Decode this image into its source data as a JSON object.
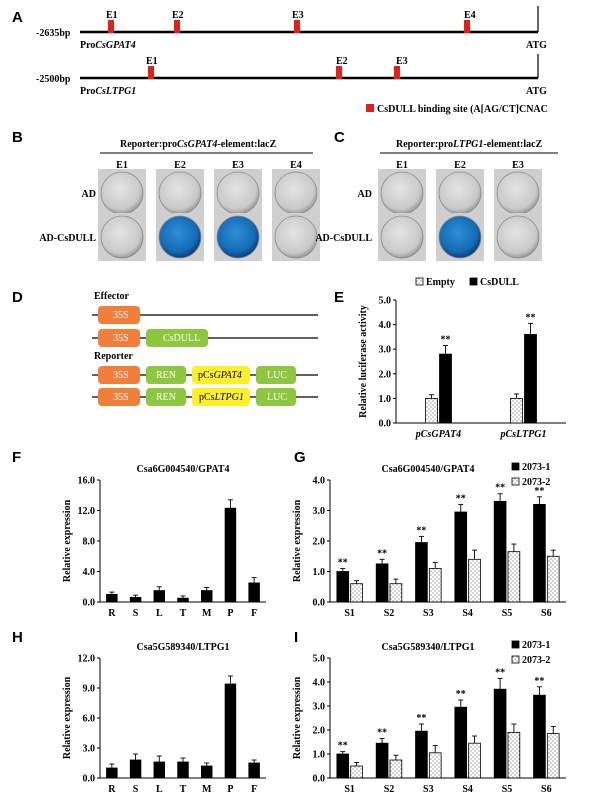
{
  "panel_letters": {
    "A": "A",
    "B": "B",
    "C": "C",
    "D": "D",
    "E": "E",
    "F": "F",
    "G": "G",
    "H": "H",
    "I": "I"
  },
  "panel_a": {
    "gpat4": {
      "start": "-2635bp",
      "name_prefix": "Pro",
      "name_italic": "CsGPAT4",
      "end": "ATG",
      "sites": [
        "E1",
        "E2",
        "E3",
        "E4"
      ]
    },
    "ltpg1": {
      "start": "-2500bp",
      "name_prefix": "Pro",
      "name_italic": "CsLTPG1",
      "end": "ATG",
      "sites": [
        "E1",
        "E2",
        "E3"
      ]
    },
    "legend": "CsDULL binding site (A[AG/CT]CNAC",
    "site_color": "#e0201a"
  },
  "panel_b": {
    "title_prefix": "Reporter:pro",
    "title_italic": "CsGPAT4",
    "title_suffix": "-element:lacZ",
    "cols": [
      "E1",
      "E2",
      "E3",
      "E4"
    ],
    "rows": [
      "AD",
      "AD-CsDULL"
    ],
    "blue": [
      [
        false,
        false,
        false,
        false
      ],
      [
        false,
        true,
        true,
        false
      ]
    ]
  },
  "panel_c": {
    "title_prefix": "Reporter:pro",
    "title_italic": "LTPG1",
    "title_suffix": "-element:lacZ",
    "cols": [
      "E1",
      "E2",
      "E3"
    ],
    "rows": [
      "AD",
      "AD-CsDULL"
    ],
    "blue": [
      [
        false,
        false,
        false
      ],
      [
        false,
        true,
        false
      ]
    ]
  },
  "panel_d": {
    "effector_label": "Effector",
    "reporter_label": "Reporter",
    "box_35s": "35S",
    "box_csdull": "CsDULL",
    "box_ren": "REN",
    "box_luc": "LUC",
    "gpat4_prefix": "pCs",
    "gpat4_italic": "GPAT4",
    "ltpg1_prefix": "pCs",
    "ltpg1_italic": "LTPG1",
    "colors": {
      "s35": "#f07f3c",
      "csdull": "#8dc63f",
      "ren": "#8dc63f",
      "promoter": "#ffef2a",
      "luc": "#8dc63f"
    }
  },
  "chart_data": [
    {
      "id": "E",
      "type": "bar",
      "ylabel": "Relative luciferase activity",
      "ylim": [
        0,
        5
      ],
      "yticks": [
        "0.0",
        "1.0",
        "2.0",
        "3.0",
        "4.0",
        "5.0"
      ],
      "categories": [
        "pCsGPAT4",
        "pCsLTPG1"
      ],
      "series": [
        {
          "name": "Empty",
          "values": [
            1.0,
            1.0
          ]
        },
        {
          "name": "CsDULL",
          "values": [
            2.8,
            3.6
          ]
        }
      ],
      "errors": [
        [
          0.15,
          0.18
        ],
        [
          0.35,
          0.45
        ]
      ],
      "significance": [
        [
          "",
          ""
        ],
        [
          "**",
          "**"
        ]
      ],
      "legend": "top"
    },
    {
      "id": "F",
      "type": "bar",
      "title": "Csa6G004540/GPAT4",
      "ylabel": "Relative expression",
      "ylim": [
        0,
        16
      ],
      "yticks": [
        "0.0",
        "4.0",
        "8.0",
        "12.0",
        "16.0"
      ],
      "categories": [
        "R",
        "S",
        "L",
        "T",
        "M",
        "P",
        "F"
      ],
      "series": [
        {
          "name": "",
          "values": [
            1.0,
            0.6,
            1.5,
            0.5,
            1.5,
            12.3,
            2.5
          ]
        }
      ],
      "errors": [
        [
          0.3,
          0.3,
          0.5,
          0.3,
          0.4,
          1.1,
          0.7
        ]
      ]
    },
    {
      "id": "G",
      "type": "bar",
      "title": "Csa6G004540/GPAT4",
      "ylabel": "Relative expression",
      "ylim": [
        0,
        4
      ],
      "yticks": [
        "0.0",
        "1.0",
        "2.0",
        "3.0",
        "4.0"
      ],
      "categories": [
        "S1",
        "S2",
        "S3",
        "S4",
        "S5",
        "S6"
      ],
      "series": [
        {
          "name": "2073-1",
          "values": [
            1.0,
            1.25,
            1.95,
            2.95,
            3.3,
            3.2
          ]
        },
        {
          "name": "2073-2",
          "values": [
            0.6,
            0.6,
            1.1,
            1.4,
            1.65,
            1.5
          ]
        }
      ],
      "errors": [
        [
          0.1,
          0.15,
          0.2,
          0.25,
          0.25,
          0.25
        ],
        [
          0.1,
          0.15,
          0.2,
          0.3,
          0.25,
          0.2
        ]
      ],
      "significance": [
        [
          "**",
          "**",
          "**",
          "**",
          "**",
          "**"
        ],
        [
          "",
          "",
          "",
          "",
          "",
          ""
        ]
      ],
      "legend": "top-right"
    },
    {
      "id": "H",
      "type": "bar",
      "title": "Csa5G589340/LTPG1",
      "ylabel": "Relative expression",
      "ylim": [
        0,
        12
      ],
      "yticks": [
        "0.0",
        "3.0",
        "6.0",
        "9.0",
        "12.0"
      ],
      "categories": [
        "R",
        "S",
        "L",
        "T",
        "M",
        "P",
        "F"
      ],
      "series": [
        {
          "name": "",
          "values": [
            1.0,
            1.8,
            1.6,
            1.6,
            1.2,
            9.4,
            1.5
          ]
        }
      ],
      "errors": [
        [
          0.4,
          0.6,
          0.6,
          0.4,
          0.3,
          0.8,
          0.3
        ]
      ]
    },
    {
      "id": "I",
      "type": "bar",
      "title": "Csa5G589340/LTPG1",
      "ylabel": "Relative expression",
      "ylim": [
        0,
        5
      ],
      "yticks": [
        "0.0",
        "1.0",
        "2.0",
        "3.0",
        "4.0",
        "5.0"
      ],
      "categories": [
        "S1",
        "S2",
        "S3",
        "S4",
        "S5",
        "S6"
      ],
      "series": [
        {
          "name": "2073-1",
          "values": [
            1.0,
            1.45,
            1.95,
            2.95,
            3.7,
            3.45
          ]
        },
        {
          "name": "2073-2",
          "values": [
            0.5,
            0.75,
            1.05,
            1.45,
            1.9,
            1.85
          ]
        }
      ],
      "errors": [
        [
          0.1,
          0.2,
          0.3,
          0.3,
          0.45,
          0.35
        ],
        [
          0.15,
          0.2,
          0.3,
          0.3,
          0.35,
          0.3
        ]
      ],
      "significance": [
        [
          "**",
          "**",
          "**",
          "**",
          "**",
          "**"
        ],
        [
          "",
          "",
          "",
          "",
          "",
          ""
        ]
      ],
      "legend": "top-right"
    }
  ]
}
